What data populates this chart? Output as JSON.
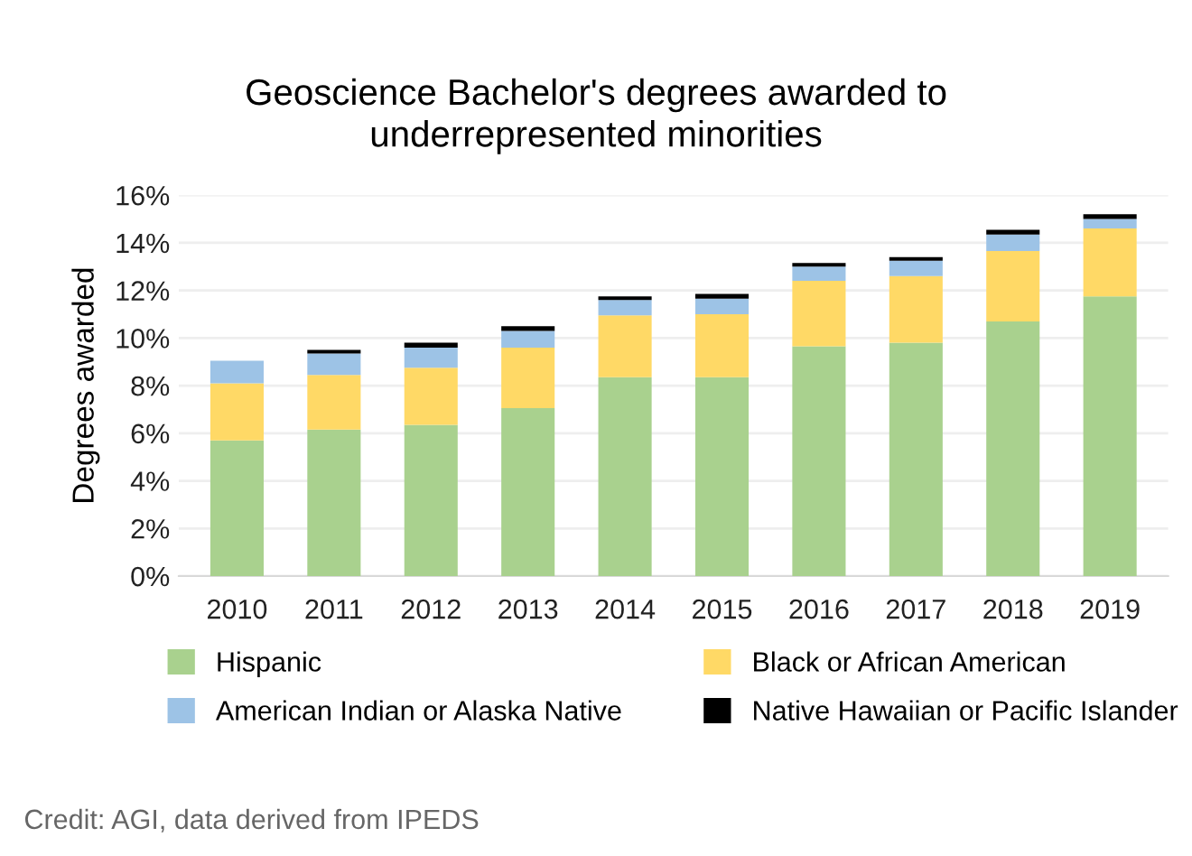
{
  "chart_data": {
    "type": "bar",
    "stacked": true,
    "title": "Geoscience Bachelor's degrees awarded to\nunderrepresented minorities",
    "ylabel": "Degrees awarded",
    "categories": [
      "2010",
      "2011",
      "2012",
      "2013",
      "2014",
      "2015",
      "2016",
      "2017",
      "2018",
      "2019"
    ],
    "series": [
      {
        "name": "Hispanic",
        "color": "#a9d18e",
        "values": [
          5.7,
          6.15,
          6.35,
          7.05,
          8.35,
          8.35,
          9.65,
          9.8,
          10.7,
          11.75
        ]
      },
      {
        "name": "Black or African American",
        "color": "#ffd966",
        "values": [
          2.4,
          2.3,
          2.4,
          2.55,
          2.6,
          2.65,
          2.75,
          2.8,
          2.95,
          2.85
        ]
      },
      {
        "name": "American Indian or Alaska Native",
        "color": "#9dc3e6",
        "values": [
          0.95,
          0.9,
          0.85,
          0.7,
          0.65,
          0.65,
          0.6,
          0.65,
          0.7,
          0.4
        ]
      },
      {
        "name": "Native Hawaiian or Pacific Islander",
        "color": "#000000",
        "values": [
          0,
          0.15,
          0.2,
          0.2,
          0.15,
          0.2,
          0.15,
          0.15,
          0.2,
          0.2
        ]
      }
    ],
    "ylim": [
      0,
      16
    ],
    "yticks": [
      {
        "value": 0,
        "label": "0%"
      },
      {
        "value": 2,
        "label": "2%"
      },
      {
        "value": 4,
        "label": "4%"
      },
      {
        "value": 6,
        "label": "6%"
      },
      {
        "value": 8,
        "label": "8%"
      },
      {
        "value": 10,
        "label": "10%"
      },
      {
        "value": 12,
        "label": "12%"
      },
      {
        "value": 14,
        "label": "14%"
      },
      {
        "value": 16,
        "label": "16%"
      }
    ],
    "grid": "y",
    "legend": "bottom",
    "annotations": [
      "Credit: AGI, data derived from IPEDS"
    ]
  }
}
